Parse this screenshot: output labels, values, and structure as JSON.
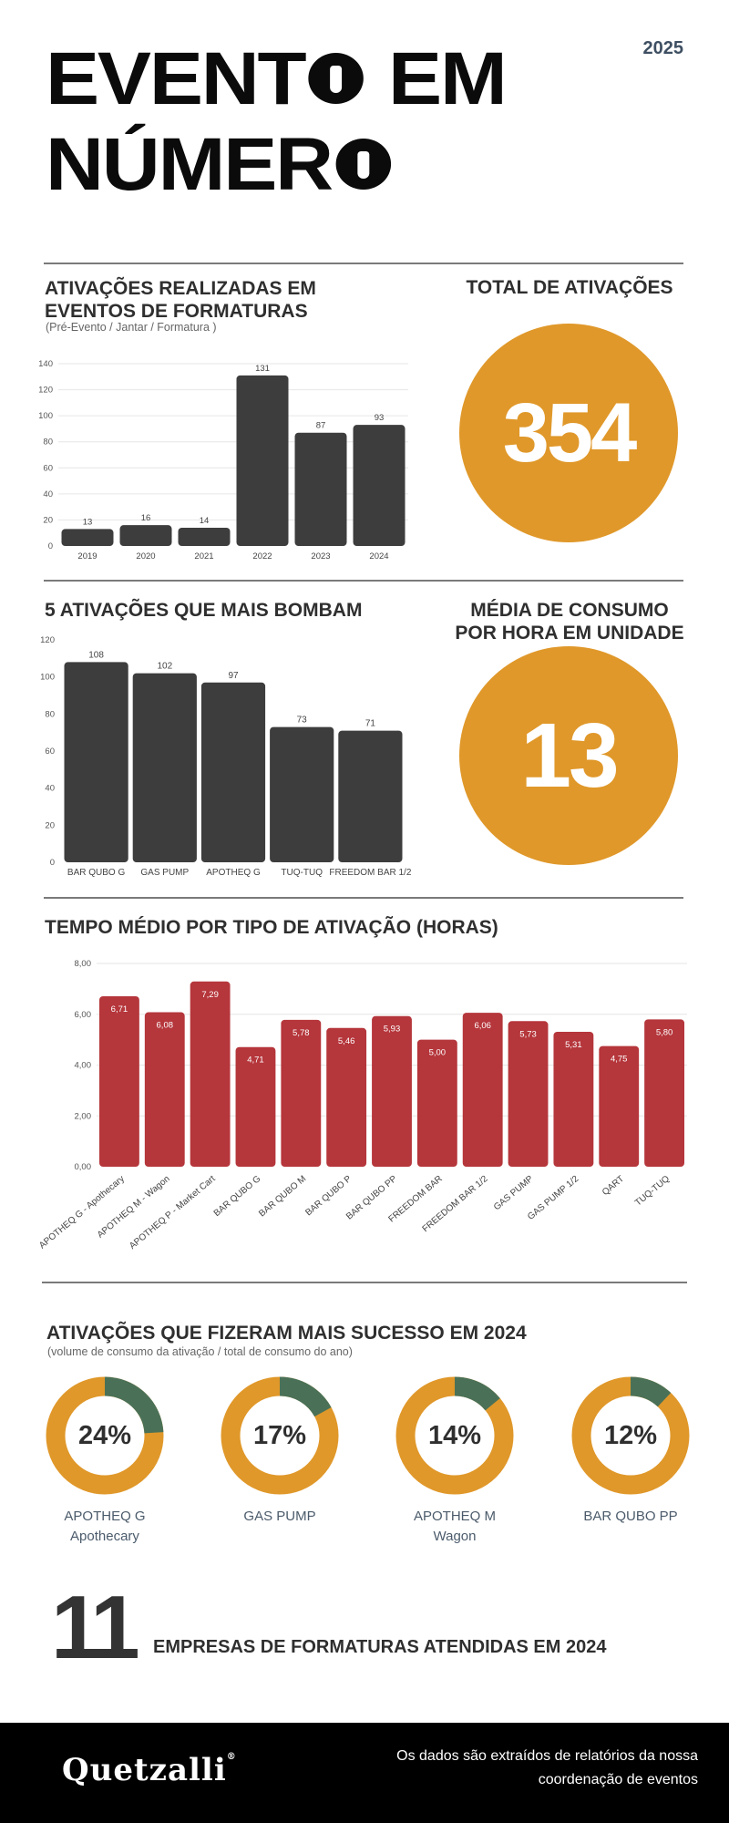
{
  "header": {
    "title_line1_a": "EVENT",
    "title_line1_b": "EM",
    "title_line2": "NÚMER",
    "year": "2025"
  },
  "section_activations": {
    "title_line1": "ATIVAÇÕES REALIZADAS EM",
    "title_line2": "EVENTOS DE FORMATURAS",
    "subtitle": "(Pré-Evento / Jantar / Formatura )"
  },
  "total_activations": {
    "title": "TOTAL DE ATIVAÇÕES",
    "value": "354"
  },
  "section_top5": {
    "title": "5 ATIVAÇÕES QUE MAIS BOMBAM"
  },
  "consumption": {
    "title_line1": "MÉDIA DE CONSUMO",
    "title_line2": "POR HORA EM UNIDADE",
    "value": "13"
  },
  "section_time": {
    "title": "TEMPO MÉDIO POR TIPO DE ATIVAÇÃO (HORAS)"
  },
  "section_success": {
    "title": "ATIVAÇÕES QUE FIZERAM MAIS SUCESSO EM 2024",
    "subtitle": "(volume de consumo da ativação / total de consumo do ano)",
    "items": [
      {
        "pct_label": "24%",
        "pct": 24,
        "label_line1": "APOTHEQ G",
        "label_line2": "Apothecary"
      },
      {
        "pct_label": "17%",
        "pct": 17,
        "label_line1": "GAS PUMP",
        "label_line2": ""
      },
      {
        "pct_label": "14%",
        "pct": 14,
        "label_line1": "APOTHEQ M",
        "label_line2": "Wagon"
      },
      {
        "pct_label": "12%",
        "pct": 12,
        "label_line1": "BAR QUBO PP",
        "label_line2": ""
      }
    ]
  },
  "companies": {
    "value": "11",
    "label": "EMPRESAS DE FORMATURAS ATENDIDAS EM 2024"
  },
  "footer": {
    "logo": "Quetzalli",
    "logo_mark": "®",
    "text_line1": "Os dados são extraídos de relatórios da nossa",
    "text_line2": "coordenação de eventos"
  },
  "colors": {
    "orange": "#e0982a",
    "dark_bar": "#3d3d3d",
    "red_bar": "#b5363b",
    "green": "#4a7157"
  },
  "chart_data": [
    {
      "type": "bar",
      "categories": [
        "2019",
        "2020",
        "2021",
        "2022",
        "2023",
        "2024"
      ],
      "values": [
        13,
        16,
        14,
        131,
        87,
        93
      ],
      "value_labels": [
        "13",
        "16",
        "14",
        "131",
        "87",
        "93"
      ],
      "yticks": [
        "0",
        "20",
        "40",
        "60",
        "80",
        "100",
        "120",
        "140"
      ],
      "ylim": [
        0,
        140
      ],
      "grid": true
    },
    {
      "type": "bar",
      "categories": [
        "BAR QUBO G",
        "GAS PUMP",
        "APOTHEQ G",
        "TUQ-TUQ",
        "FREEDOM BAR 1/2"
      ],
      "values": [
        108,
        102,
        97,
        73,
        71
      ],
      "value_labels": [
        "108",
        "102",
        "97",
        "73",
        "71"
      ],
      "yticks": [
        "0",
        "20",
        "40",
        "60",
        "80",
        "100",
        "120"
      ],
      "ylim": [
        0,
        120
      ],
      "grid": false
    },
    {
      "type": "bar",
      "categories": [
        "APOTHEQ G - Apothecary",
        "APOTHEQ M - Wagon",
        "APOTHEQ P - Market Cart",
        "BAR QUBO G",
        "BAR QUBO M",
        "BAR QUBO P",
        "BAR QUBO PP",
        "FREEDOM BAR",
        "FREEDOM BAR 1/2",
        "GAS PUMP",
        "GAS PUMP 1/2",
        "QART",
        "TUQ-TUQ"
      ],
      "values": [
        6.71,
        6.08,
        7.29,
        4.71,
        5.78,
        5.46,
        5.93,
        5.0,
        6.06,
        5.73,
        5.31,
        4.75,
        5.8
      ],
      "value_labels": [
        "6,71",
        "6,08",
        "7,29",
        "4,71",
        "5,78",
        "5,46",
        "5,93",
        "5,00",
        "6,06",
        "5,73",
        "5,31",
        "4,75",
        "5,80"
      ],
      "yticks": [
        "0,00",
        "2,00",
        "4,00",
        "6,00",
        "8,00"
      ],
      "ylim": [
        0,
        8
      ],
      "grid": true
    },
    {
      "type": "pie",
      "series": [
        {
          "values": [
            24,
            76
          ]
        },
        {
          "values": [
            17,
            83
          ]
        },
        {
          "values": [
            14,
            86
          ]
        },
        {
          "values": [
            12,
            88
          ]
        }
      ]
    }
  ]
}
